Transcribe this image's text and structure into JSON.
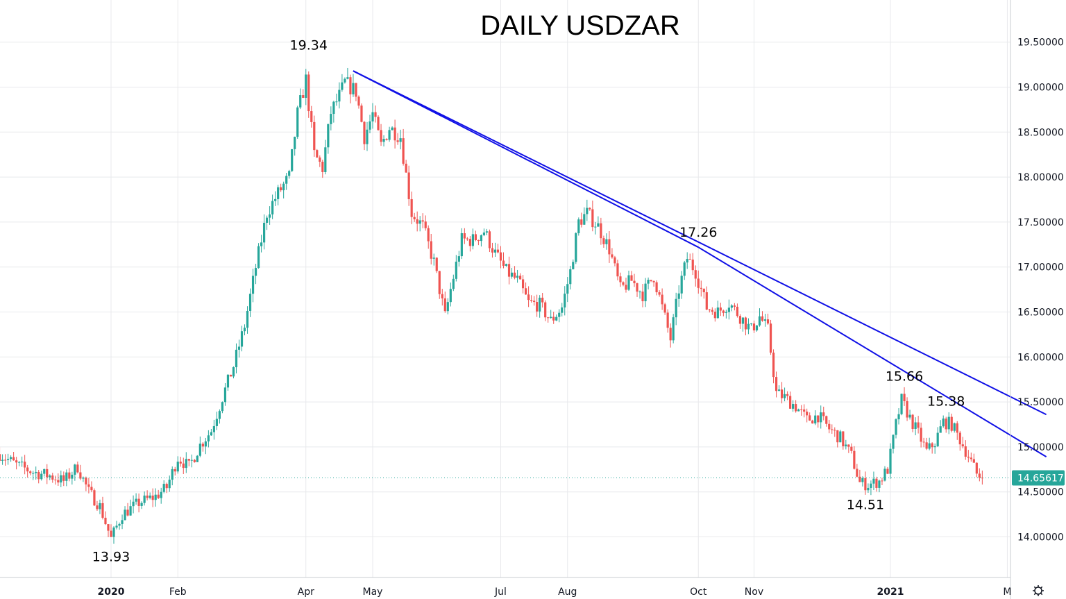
{
  "chart_data": {
    "type": "candlestick",
    "title": "DAILY USDZAR",
    "y_axis": {
      "position": "right",
      "range": [
        13.6,
        20.0
      ],
      "ticks": [
        "19.50000",
        "19.00000",
        "18.50000",
        "18.00000",
        "17.50000",
        "17.00000",
        "16.50000",
        "16.00000",
        "15.50000",
        "15.00000",
        "14.50000",
        "14.00000"
      ],
      "tick_values": [
        19.5,
        19.0,
        18.5,
        18.0,
        17.5,
        17.0,
        16.5,
        16.0,
        15.5,
        15.0,
        14.5,
        14.0
      ]
    },
    "x_axis": {
      "labels": [
        {
          "text": "2020",
          "bold": true
        },
        {
          "text": "Feb",
          "bold": false
        },
        {
          "text": "Apr",
          "bold": false
        },
        {
          "text": "May",
          "bold": false
        },
        {
          "text": "Jul",
          "bold": false
        },
        {
          "text": "Aug",
          "bold": false
        },
        {
          "text": "Oct",
          "bold": false
        },
        {
          "text": "Nov",
          "bold": false
        },
        {
          "text": "2021",
          "bold": true
        },
        {
          "text": "M",
          "bold": false
        }
      ],
      "label_days": [
        0,
        24,
        70,
        94,
        140,
        164,
        211,
        231,
        280,
        322
      ]
    },
    "day_range": [
      -40,
      336
    ],
    "grid": true,
    "current_price": {
      "value": 14.65617,
      "label": "14.65617",
      "color": "#26a69a"
    },
    "up_color": "#26a69a",
    "down_color": "#ef5350",
    "trendline_color": "#1010e6",
    "anchors": [
      [
        -40,
        14.92
      ],
      [
        -34,
        14.8
      ],
      [
        -28,
        14.72
      ],
      [
        -22,
        14.68
      ],
      [
        -17,
        14.62
      ],
      [
        -12,
        14.78
      ],
      [
        -8,
        14.5
      ],
      [
        -4,
        14.34
      ],
      [
        0,
        13.98
      ],
      [
        4,
        14.25
      ],
      [
        10,
        14.38
      ],
      [
        16,
        14.45
      ],
      [
        20,
        14.55
      ],
      [
        24,
        14.88
      ],
      [
        28,
        14.78
      ],
      [
        32,
        15.02
      ],
      [
        36,
        15.18
      ],
      [
        40,
        15.55
      ],
      [
        44,
        15.9
      ],
      [
        48,
        16.35
      ],
      [
        52,
        17.0
      ],
      [
        56,
        17.6
      ],
      [
        60,
        17.82
      ],
      [
        64,
        18.0
      ],
      [
        67,
        18.7
      ],
      [
        70,
        19.08
      ],
      [
        73,
        18.25
      ],
      [
        76,
        18.1
      ],
      [
        79,
        18.72
      ],
      [
        82,
        18.9
      ],
      [
        84,
        19.05
      ],
      [
        88,
        18.95
      ],
      [
        91,
        18.45
      ],
      [
        94,
        18.7
      ],
      [
        97,
        18.35
      ],
      [
        100,
        18.55
      ],
      [
        104,
        18.45
      ],
      [
        108,
        17.6
      ],
      [
        112,
        17.45
      ],
      [
        116,
        17.05
      ],
      [
        120,
        16.45
      ],
      [
        122,
        16.75
      ],
      [
        126,
        17.3
      ],
      [
        130,
        17.3
      ],
      [
        134,
        17.4
      ],
      [
        138,
        17.15
      ],
      [
        142,
        16.95
      ],
      [
        146,
        16.85
      ],
      [
        150,
        16.6
      ],
      [
        154,
        16.58
      ],
      [
        158,
        16.4
      ],
      [
        162,
        16.55
      ],
      [
        165,
        16.95
      ],
      [
        168,
        17.5
      ],
      [
        171,
        17.6
      ],
      [
        175,
        17.45
      ],
      [
        179,
        17.2
      ],
      [
        183,
        16.75
      ],
      [
        187,
        16.85
      ],
      [
        191,
        16.7
      ],
      [
        195,
        16.9
      ],
      [
        198,
        16.55
      ],
      [
        201,
        16.2
      ],
      [
        204,
        16.75
      ],
      [
        207,
        17.1
      ],
      [
        210,
        16.95
      ],
      [
        214,
        16.55
      ],
      [
        218,
        16.5
      ],
      [
        222,
        16.6
      ],
      [
        226,
        16.45
      ],
      [
        230,
        16.3
      ],
      [
        233,
        16.45
      ],
      [
        236,
        16.3
      ],
      [
        239,
        15.6
      ],
      [
        242,
        15.55
      ],
      [
        246,
        15.45
      ],
      [
        250,
        15.3
      ],
      [
        254,
        15.35
      ],
      [
        258,
        15.2
      ],
      [
        262,
        15.1
      ],
      [
        266,
        14.9
      ],
      [
        269,
        14.6
      ],
      [
        272,
        14.58
      ],
      [
        276,
        14.62
      ],
      [
        279,
        14.75
      ],
      [
        282,
        15.25
      ],
      [
        284,
        15.52
      ],
      [
        287,
        15.32
      ],
      [
        290,
        15.15
      ],
      [
        293,
        14.95
      ],
      [
        296,
        15.05
      ],
      [
        299,
        15.28
      ],
      [
        302,
        15.25
      ],
      [
        305,
        15.08
      ],
      [
        308,
        14.9
      ],
      [
        311,
        14.7
      ],
      [
        313,
        14.66
      ]
    ],
    "trendlines": [
      {
        "from": [
          87,
          19.18
        ],
        "to": [
          336,
          15.36
        ]
      },
      {
        "from": [
          87,
          19.18
        ],
        "to": [
          211,
          17.22
        ]
      },
      {
        "from": [
          211,
          17.22
        ],
        "to": [
          336,
          14.89
        ]
      }
    ],
    "annotations": [
      {
        "text": "19.34",
        "day": 71,
        "value": 19.34,
        "placement": "above"
      },
      {
        "text": "17.26",
        "day": 211,
        "value": 17.26,
        "placement": "above"
      },
      {
        "text": "15.66",
        "day": 285,
        "value": 15.66,
        "placement": "above"
      },
      {
        "text": "15.38",
        "day": 300,
        "value": 15.38,
        "placement": "above"
      },
      {
        "text": "14.51",
        "day": 271,
        "value": 14.51,
        "placement": "below"
      },
      {
        "text": "13.93",
        "day": 0,
        "value": 13.93,
        "placement": "below"
      }
    ]
  }
}
